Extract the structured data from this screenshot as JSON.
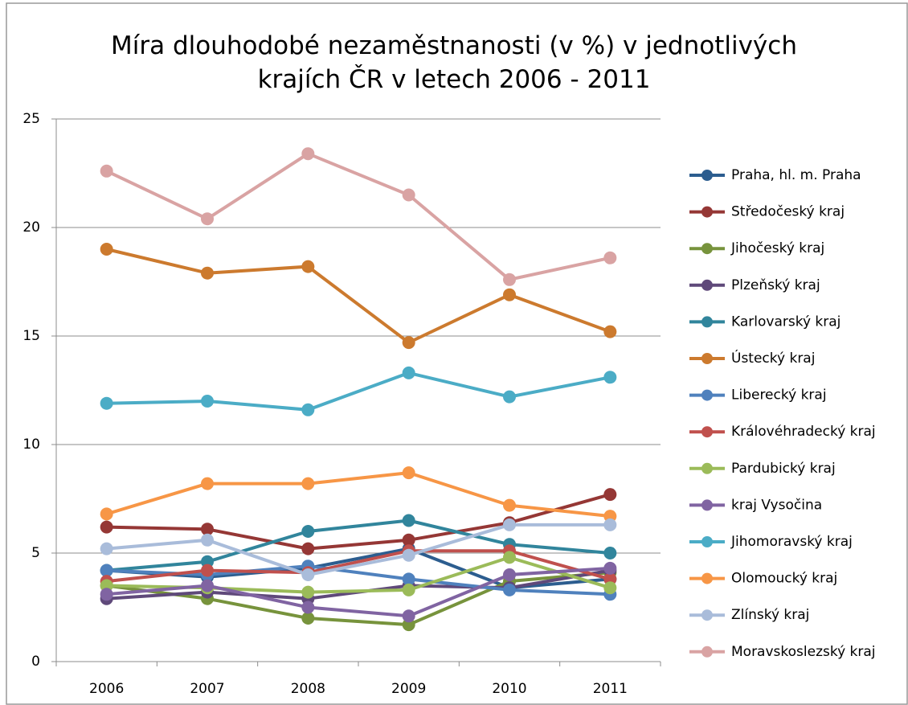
{
  "chart_data": {
    "type": "line",
    "title": "Míra dlouhodobé nezaměstnanosti (v %) v jednotlivých krajích ČR v letech 2006 - 2011",
    "categories": [
      "2006",
      "2007",
      "2008",
      "2009",
      "2010",
      "2011"
    ],
    "ylim": [
      0,
      25
    ],
    "yticks": [
      0,
      5,
      10,
      15,
      20,
      25
    ],
    "grid": true,
    "legend": "right",
    "series": [
      {
        "name": "Praha, hl. m. Praha",
        "color": "#2C5D8F",
        "values": [
          4.2,
          3.9,
          4.3,
          5.2,
          3.4,
          3.8
        ]
      },
      {
        "name": "Středočeský kraj",
        "color": "#953735",
        "values": [
          6.2,
          6.1,
          5.2,
          5.6,
          6.4,
          7.7
        ]
      },
      {
        "name": "Jihočeský kraj",
        "color": "#77933C",
        "values": [
          3.5,
          2.9,
          2.0,
          1.7,
          3.7,
          4.1
        ]
      },
      {
        "name": "Plzeňský kraj",
        "color": "#5F497A",
        "values": [
          2.9,
          3.2,
          2.9,
          3.5,
          3.4,
          4.2
        ]
      },
      {
        "name": "Karlovarský kraj",
        "color": "#31859C",
        "values": [
          4.2,
          4.6,
          6.0,
          6.5,
          5.4,
          5.0
        ]
      },
      {
        "name": "Ústecký kraj",
        "color": "#CC7A2E",
        "values": [
          19.0,
          17.9,
          18.2,
          14.7,
          16.9,
          15.2
        ]
      },
      {
        "name": "Liberecký kraj",
        "color": "#4F81BD",
        "values": [
          4.2,
          4.0,
          4.4,
          3.8,
          3.3,
          3.1
        ]
      },
      {
        "name": "Královéhradecký kraj",
        "color": "#C0504D",
        "values": [
          3.7,
          4.2,
          4.1,
          5.1,
          5.1,
          3.8
        ]
      },
      {
        "name": "Pardubický kraj",
        "color": "#9BBB59",
        "values": [
          3.5,
          3.4,
          3.2,
          3.3,
          4.8,
          3.4
        ]
      },
      {
        "name": "kraj Vysočina",
        "color": "#8064A2",
        "values": [
          3.1,
          3.5,
          2.5,
          2.1,
          4.0,
          4.3
        ]
      },
      {
        "name": "Jihomoravský kraj",
        "color": "#4BACC6",
        "values": [
          11.9,
          12.0,
          11.6,
          13.3,
          12.2,
          13.1
        ]
      },
      {
        "name": "Olomoucký kraj",
        "color": "#F79646",
        "values": [
          6.8,
          8.2,
          8.2,
          8.7,
          7.2,
          6.7
        ]
      },
      {
        "name": "Zlínský kraj",
        "color": "#A9BCDA",
        "values": [
          5.2,
          5.6,
          4.0,
          4.9,
          6.3,
          6.3
        ]
      },
      {
        "name": "Moravskoslezský kraj",
        "color": "#D9A3A3",
        "values": [
          22.6,
          20.4,
          23.4,
          21.5,
          17.6,
          18.6
        ]
      }
    ]
  }
}
